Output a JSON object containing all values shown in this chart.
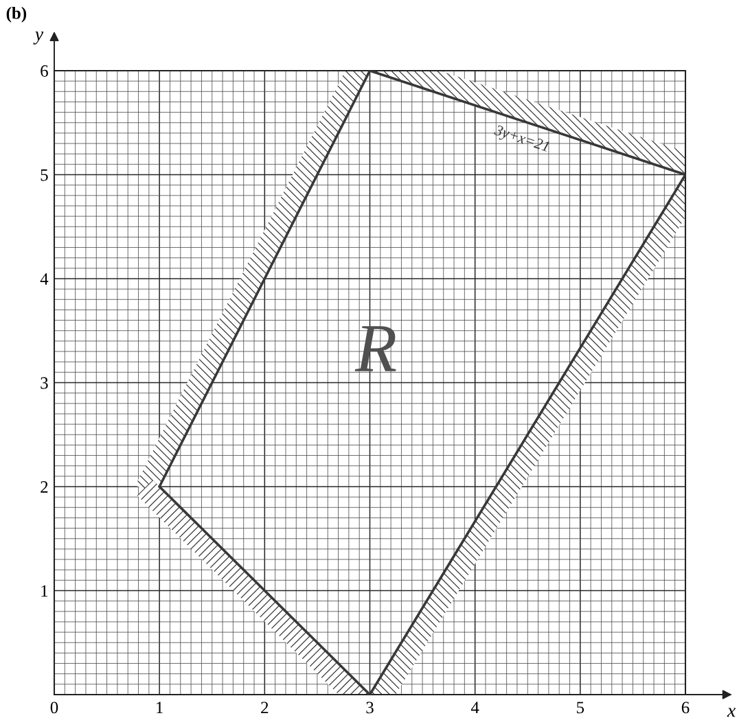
{
  "chart_data": {
    "type": "line",
    "title": "(b)",
    "xlabel": "x",
    "ylabel": "y",
    "series": [
      {
        "color": "#383838",
        "x": [
          1,
          3,
          6
        ],
        "values": [
          2,
          6,
          5
        ]
      },
      {
        "color": "#383838",
        "x": [
          1,
          3,
          6
        ],
        "values": [
          2,
          0,
          5
        ]
      }
    ],
    "xlim": [
      0,
      6
    ],
    "ylim": [
      0,
      6
    ],
    "xticks": [
      0,
      1,
      2,
      3,
      4,
      5,
      6
    ],
    "yticks": [
      1,
      2,
      3,
      4,
      5,
      6
    ],
    "grid": true,
    "annotations": [
      {
        "text": "3y+x=21",
        "x": 4.5,
        "y": 5.5
      },
      "R"
    ]
  }
}
